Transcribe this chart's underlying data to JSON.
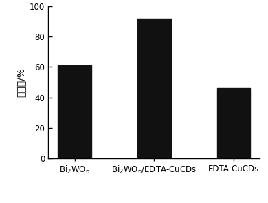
{
  "categories": [
    "Bi$_2$WO$_6$",
    "Bi$_2$WO$_6$/EDTA-CuCDs",
    "EDTA-CuCDs"
  ],
  "values": [
    61,
    92,
    46
  ],
  "bar_color": "#111111",
  "ylabel_chinese": "催化率/%",
  "ylim": [
    0,
    100
  ],
  "yticks": [
    0,
    20,
    40,
    60,
    80,
    100
  ],
  "bar_width": 0.42,
  "bg_color": "#ffffff",
  "tick_label_fontsize": 8.5,
  "ylabel_fontsize": 10
}
